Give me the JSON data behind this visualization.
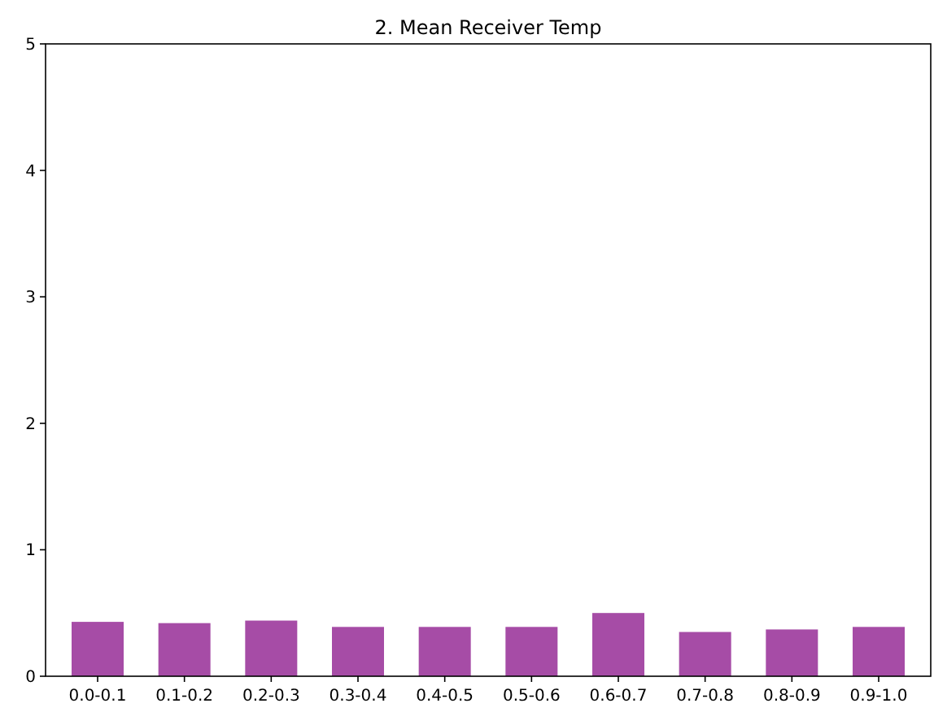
{
  "chart_data": {
    "type": "bar",
    "title": "2. Mean Receiver Temp",
    "categories": [
      "0.0-0.1",
      "0.1-0.2",
      "0.2-0.3",
      "0.3-0.4",
      "0.4-0.5",
      "0.5-0.6",
      "0.6-0.7",
      "0.7-0.8",
      "0.8-0.9",
      "0.9-1.0"
    ],
    "values": [
      0.43,
      0.42,
      0.44,
      0.39,
      0.39,
      0.39,
      0.5,
      0.35,
      0.37,
      0.39
    ],
    "color": "#a64ca6",
    "ylim": [
      0,
      5
    ],
    "yticks": [
      0,
      1,
      2,
      3,
      4,
      5
    ],
    "grid": false
  }
}
